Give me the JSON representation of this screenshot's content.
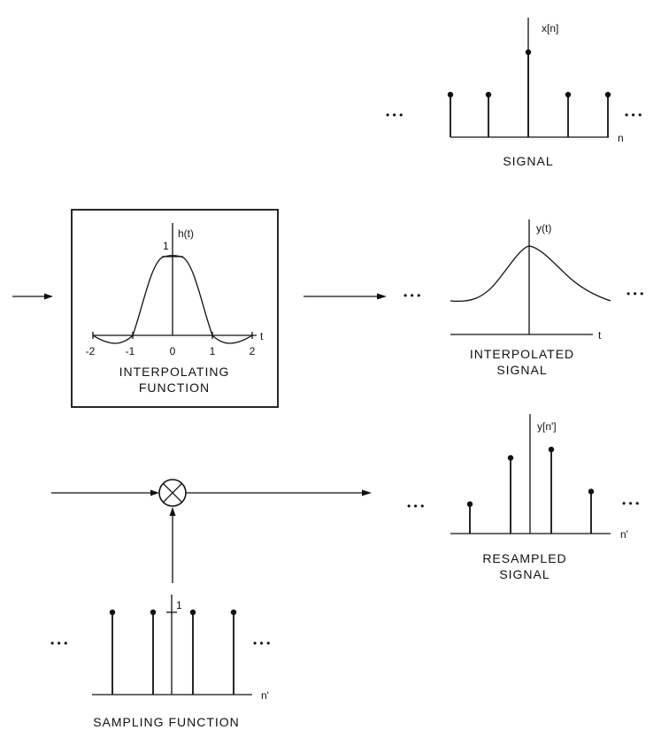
{
  "signal": {
    "ylabel": "x[n]",
    "xlabel": "n",
    "caption": "SIGNAL",
    "ellipsis": "• • •",
    "values": [
      0.5,
      0.5,
      1.0,
      0.5,
      0.5
    ]
  },
  "interpolating_function": {
    "ylabel": "h(t)",
    "xlabel": "t",
    "one_tick": "1",
    "ticks": [
      "-2",
      "-1",
      "0",
      "1",
      "2"
    ],
    "caption_line1": "INTERPOLATING",
    "caption_line2": "FUNCTION"
  },
  "interpolated": {
    "ylabel": "y(t)",
    "xlabel": "t",
    "caption_line1": "INTERPOLATED",
    "caption_line2": "SIGNAL",
    "ellipsis": "• • •"
  },
  "resampled": {
    "ylabel": "y[n']",
    "xlabel": "n'",
    "caption_line1": "RESAMPLED",
    "caption_line2": "SIGNAL",
    "ellipsis": "• • •",
    "values": [
      0.35,
      0.9,
      1.0,
      0.5
    ]
  },
  "sampling": {
    "xlabel": "n'",
    "one_tick": "1",
    "caption": "SAMPLING FUNCTION",
    "ellipsis": "• • •",
    "values": [
      1,
      1,
      1,
      1
    ]
  }
}
